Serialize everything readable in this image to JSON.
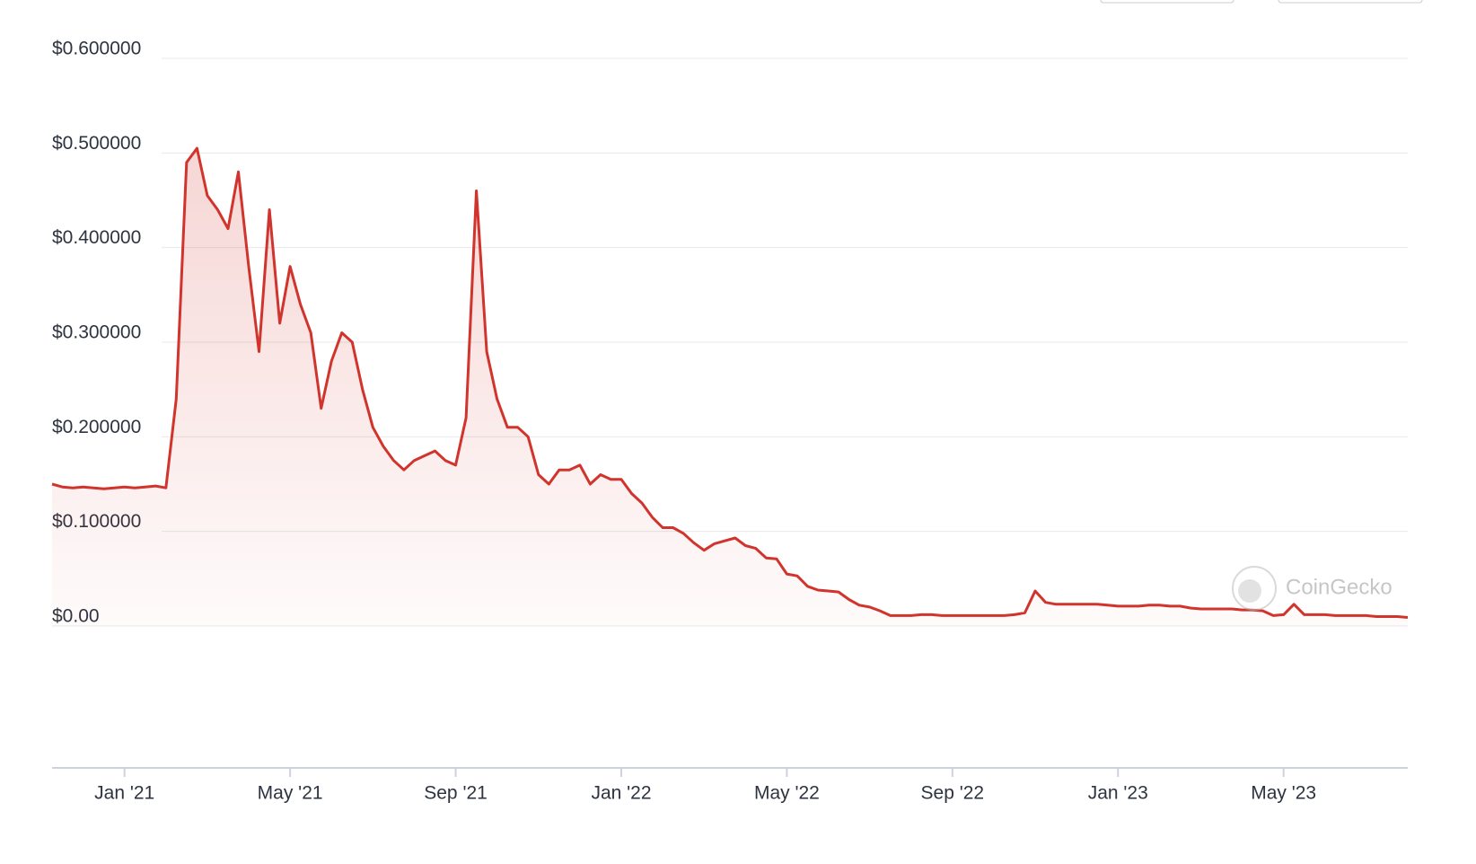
{
  "chart_data": {
    "type": "line",
    "categories": [
      null,
      null,
      null,
      null,
      null,
      null,
      null,
      "Jan '21",
      null,
      null,
      null,
      null,
      null,
      null,
      null,
      null,
      null,
      null,
      null,
      null,
      null,
      null,
      null,
      "May '21",
      null,
      null,
      null,
      null,
      null,
      null,
      null,
      null,
      null,
      null,
      null,
      null,
      null,
      null,
      null,
      "Sep '21",
      null,
      null,
      null,
      null,
      null,
      null,
      null,
      null,
      null,
      null,
      null,
      null,
      null,
      null,
      null,
      "Jan '22",
      null,
      null,
      null,
      null,
      null,
      null,
      null,
      null,
      null,
      null,
      null,
      null,
      null,
      null,
      null,
      "May '22",
      null,
      null,
      null,
      null,
      null,
      null,
      null,
      null,
      null,
      null,
      null,
      null,
      null,
      null,
      null,
      "Sep '22",
      null,
      null,
      null,
      null,
      null,
      null,
      null,
      null,
      null,
      null,
      null,
      null,
      null,
      null,
      null,
      "Jan '23",
      null,
      null,
      null,
      null,
      null,
      null,
      null,
      null,
      null,
      null,
      null,
      null,
      null,
      null,
      null,
      "May '23",
      null,
      null,
      null,
      null,
      null,
      null,
      null,
      null,
      null,
      null,
      null,
      null
    ],
    "values": [
      0.15,
      0.147,
      0.146,
      0.147,
      0.146,
      0.145,
      0.146,
      0.147,
      0.146,
      0.147,
      0.148,
      0.146,
      0.24,
      0.49,
      0.505,
      0.455,
      0.44,
      0.42,
      0.48,
      0.38,
      0.29,
      0.44,
      0.32,
      0.38,
      0.34,
      0.31,
      0.23,
      0.28,
      0.31,
      0.3,
      0.25,
      0.21,
      0.19,
      0.175,
      0.165,
      0.175,
      0.18,
      0.185,
      0.175,
      0.17,
      0.22,
      0.46,
      0.29,
      0.24,
      0.21,
      0.21,
      0.2,
      0.16,
      0.15,
      0.165,
      0.165,
      0.17,
      0.15,
      0.16,
      0.155,
      0.155,
      0.14,
      0.13,
      0.115,
      0.104,
      0.104,
      0.098,
      0.088,
      0.08,
      0.087,
      0.09,
      0.093,
      0.085,
      0.082,
      0.072,
      0.071,
      0.055,
      0.053,
      0.042,
      0.038,
      0.037,
      0.036,
      0.028,
      0.022,
      0.02,
      0.016,
      0.011,
      0.011,
      0.011,
      0.012,
      0.012,
      0.011,
      0.011,
      0.011,
      0.011,
      0.011,
      0.011,
      0.011,
      0.012,
      0.014,
      0.037,
      0.025,
      0.023,
      0.023,
      0.023,
      0.023,
      0.023,
      0.022,
      0.021,
      0.021,
      0.021,
      0.022,
      0.022,
      0.021,
      0.021,
      0.019,
      0.018,
      0.018,
      0.018,
      0.018,
      0.017,
      0.017,
      0.016,
      0.011,
      0.012,
      0.023,
      0.012,
      0.012,
      0.012,
      0.011,
      0.011,
      0.011,
      0.011,
      0.01,
      0.01,
      0.01,
      0.009
    ],
    "color": "#d0342c",
    "ylim": [
      0,
      0.6
    ],
    "yticks": [
      {
        "value": 0,
        "label": "$0.00"
      },
      {
        "value": 0.1,
        "label": "$0.100000"
      },
      {
        "value": 0.2,
        "label": "$0.200000"
      },
      {
        "value": 0.3,
        "label": "$0.300000"
      },
      {
        "value": 0.4,
        "label": "$0.400000"
      },
      {
        "value": 0.5,
        "label": "$0.500000"
      },
      {
        "value": 0.6,
        "label": "$0.600000"
      }
    ],
    "grid": true,
    "watermark": "CoinGecko"
  }
}
